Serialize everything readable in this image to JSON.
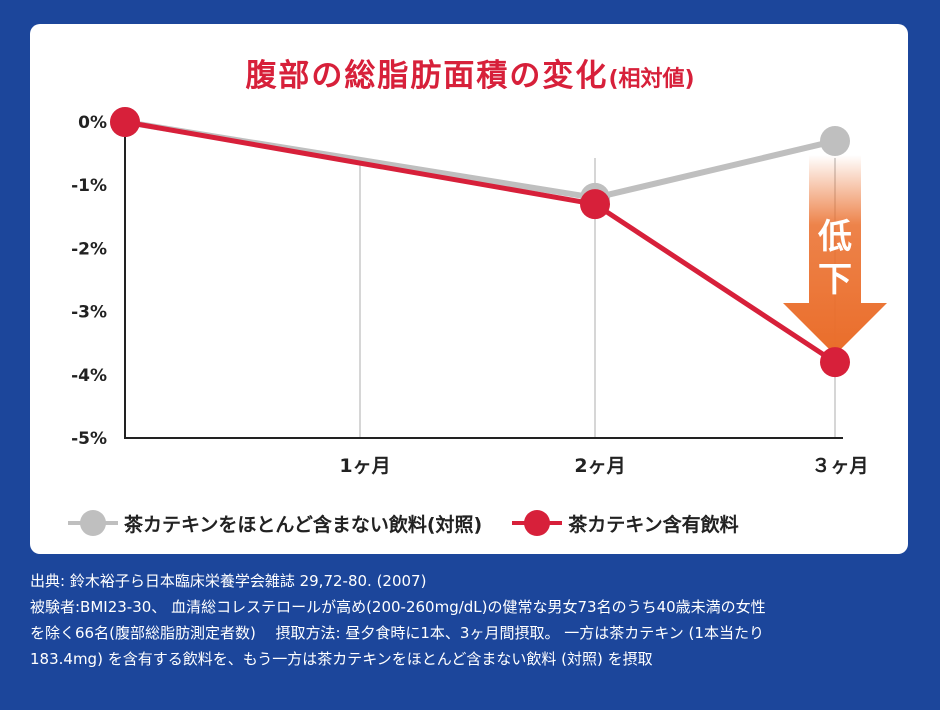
{
  "chart_data": {
    "type": "line",
    "title": "腹部の総脂肪面積の変化",
    "title_suffix": "(相対値)",
    "categories": [
      "",
      "1ヶ月",
      "2ヶ月",
      "３ヶ月"
    ],
    "y_ticks": [
      "0%",
      "-1%",
      "-2%",
      "-3%",
      "-4%",
      "-5%"
    ],
    "ylim": [
      -5,
      0
    ],
    "grid": "vertical",
    "legend_position": "bottom",
    "series": [
      {
        "name": "茶カテキンをほとんど含まない飲料(対照)",
        "color": "#bfbfbf",
        "values": [
          0,
          null,
          -1.2,
          -0.3
        ]
      },
      {
        "name": "茶カテキン含有飲料",
        "color": "#d7203a",
        "values": [
          0,
          null,
          -1.3,
          -3.8
        ]
      }
    ],
    "annotation": {
      "text": "低下",
      "color": "#ea6d2a"
    }
  },
  "footnote": {
    "line1": "出典: 鈴木裕子ら日本臨床栄養学会雑誌 29,72-80. (2007)",
    "line2": "被験者:BMI23-30、 血清総コレステロールが高め(200-260mg/dL)の健常な男女73名のうち40歳未満の女性",
    "line3": "を除く66名(腹部総脂肪測定者数)　 摂取方法: 昼夕食時に1本、3ヶ月間摂取。 一方は茶カテキン (1本当たり",
    "line4": "183.4mg) を含有する飲料を、もう一方は茶カテキンをほとんど含まない飲料 (対照) を摂取"
  }
}
